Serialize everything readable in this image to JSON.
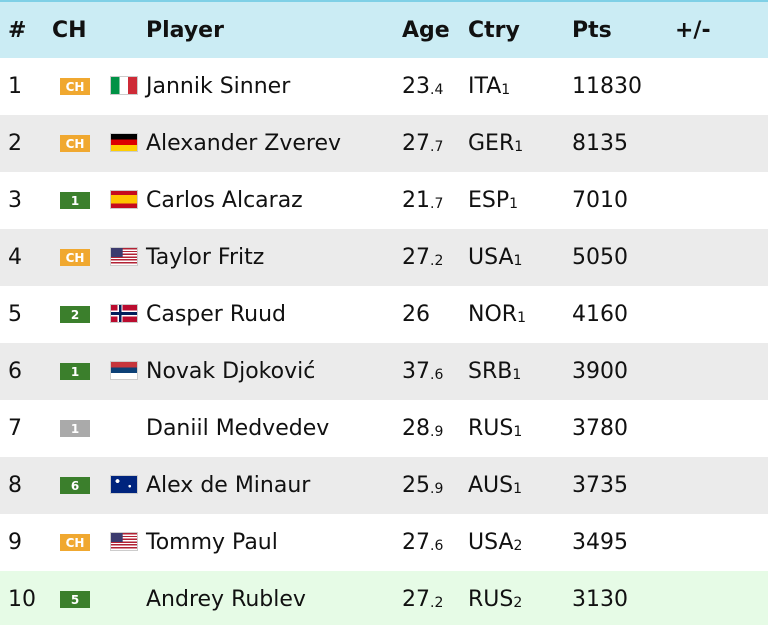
{
  "table": {
    "header": [
      "#",
      "CH",
      "Player",
      "Age",
      "Ctry",
      "Pts",
      "+/-"
    ],
    "rows": [
      {
        "rank": "1",
        "ch": "CH",
        "ch_color": "#f0a830",
        "player": "Jannik Sinner",
        "age": "23",
        "age_fraction": ".4",
        "ctry": "ITA",
        "ctry_count": "1",
        "pts": "11830"
      },
      {
        "rank": "2",
        "ch": "CH",
        "ch_color": "#f0a830",
        "player": "Alexander Zverev",
        "age": "27",
        "age_fraction": ".7",
        "ctry": "GER",
        "ctry_count": "1",
        "pts": "8135"
      },
      {
        "rank": "3",
        "ch": "1",
        "ch_color": "#3b7f2c",
        "player": "Carlos Alcaraz",
        "age": "21",
        "age_fraction": ".7",
        "ctry": "ESP",
        "ctry_count": "1",
        "pts": "7010"
      },
      {
        "rank": "4",
        "ch": "CH",
        "ch_color": "#f0a830",
        "player": "Taylor Fritz",
        "age": "27",
        "age_fraction": ".2",
        "ctry": "USA",
        "ctry_count": "1",
        "pts": "5050"
      },
      {
        "rank": "5",
        "ch": "2",
        "ch_color": "#3b7f2c",
        "player": "Casper Ruud",
        "age": "26",
        "ctry": "NOR",
        "ctry_count": "1",
        "pts": "4160"
      },
      {
        "rank": "6",
        "ch": "1",
        "ch_color": "#3b7f2c",
        "player": "Novak Djoković",
        "age": "37",
        "age_fraction": ".6",
        "ctry": "SRB",
        "ctry_count": "1",
        "pts": "3900"
      },
      {
        "rank": "7",
        "ch": "1",
        "ch_color": "#aaaaaa",
        "player": "Daniil Medvedev",
        "age": "28",
        "age_fraction": ".9",
        "ctry": "RUS",
        "ctry_count": "1",
        "pts": "3780"
      },
      {
        "rank": "8",
        "ch": "6",
        "ch_color": "#3b7f2c",
        "player": "Alex de Minaur",
        "age": "25",
        "age_fraction": ".9",
        "ctry": "AUS",
        "ctry_count": "1",
        "pts": "3735"
      },
      {
        "rank": "9",
        "ch": "CH",
        "ch_color": "#f0a830",
        "player": "Tommy Paul",
        "age": "27",
        "age_fraction": ".6",
        "ctry": "USA",
        "ctry_count": "2",
        "pts": "3495"
      },
      {
        "rank": "10",
        "ch": "5",
        "ch_color": "#3b7f2c",
        "player": "Andrey Rublev",
        "age": "27",
        "age_fraction": ".2",
        "ctry": "RUS",
        "ctry_count": "2",
        "pts": "3130"
      }
    ]
  }
}
